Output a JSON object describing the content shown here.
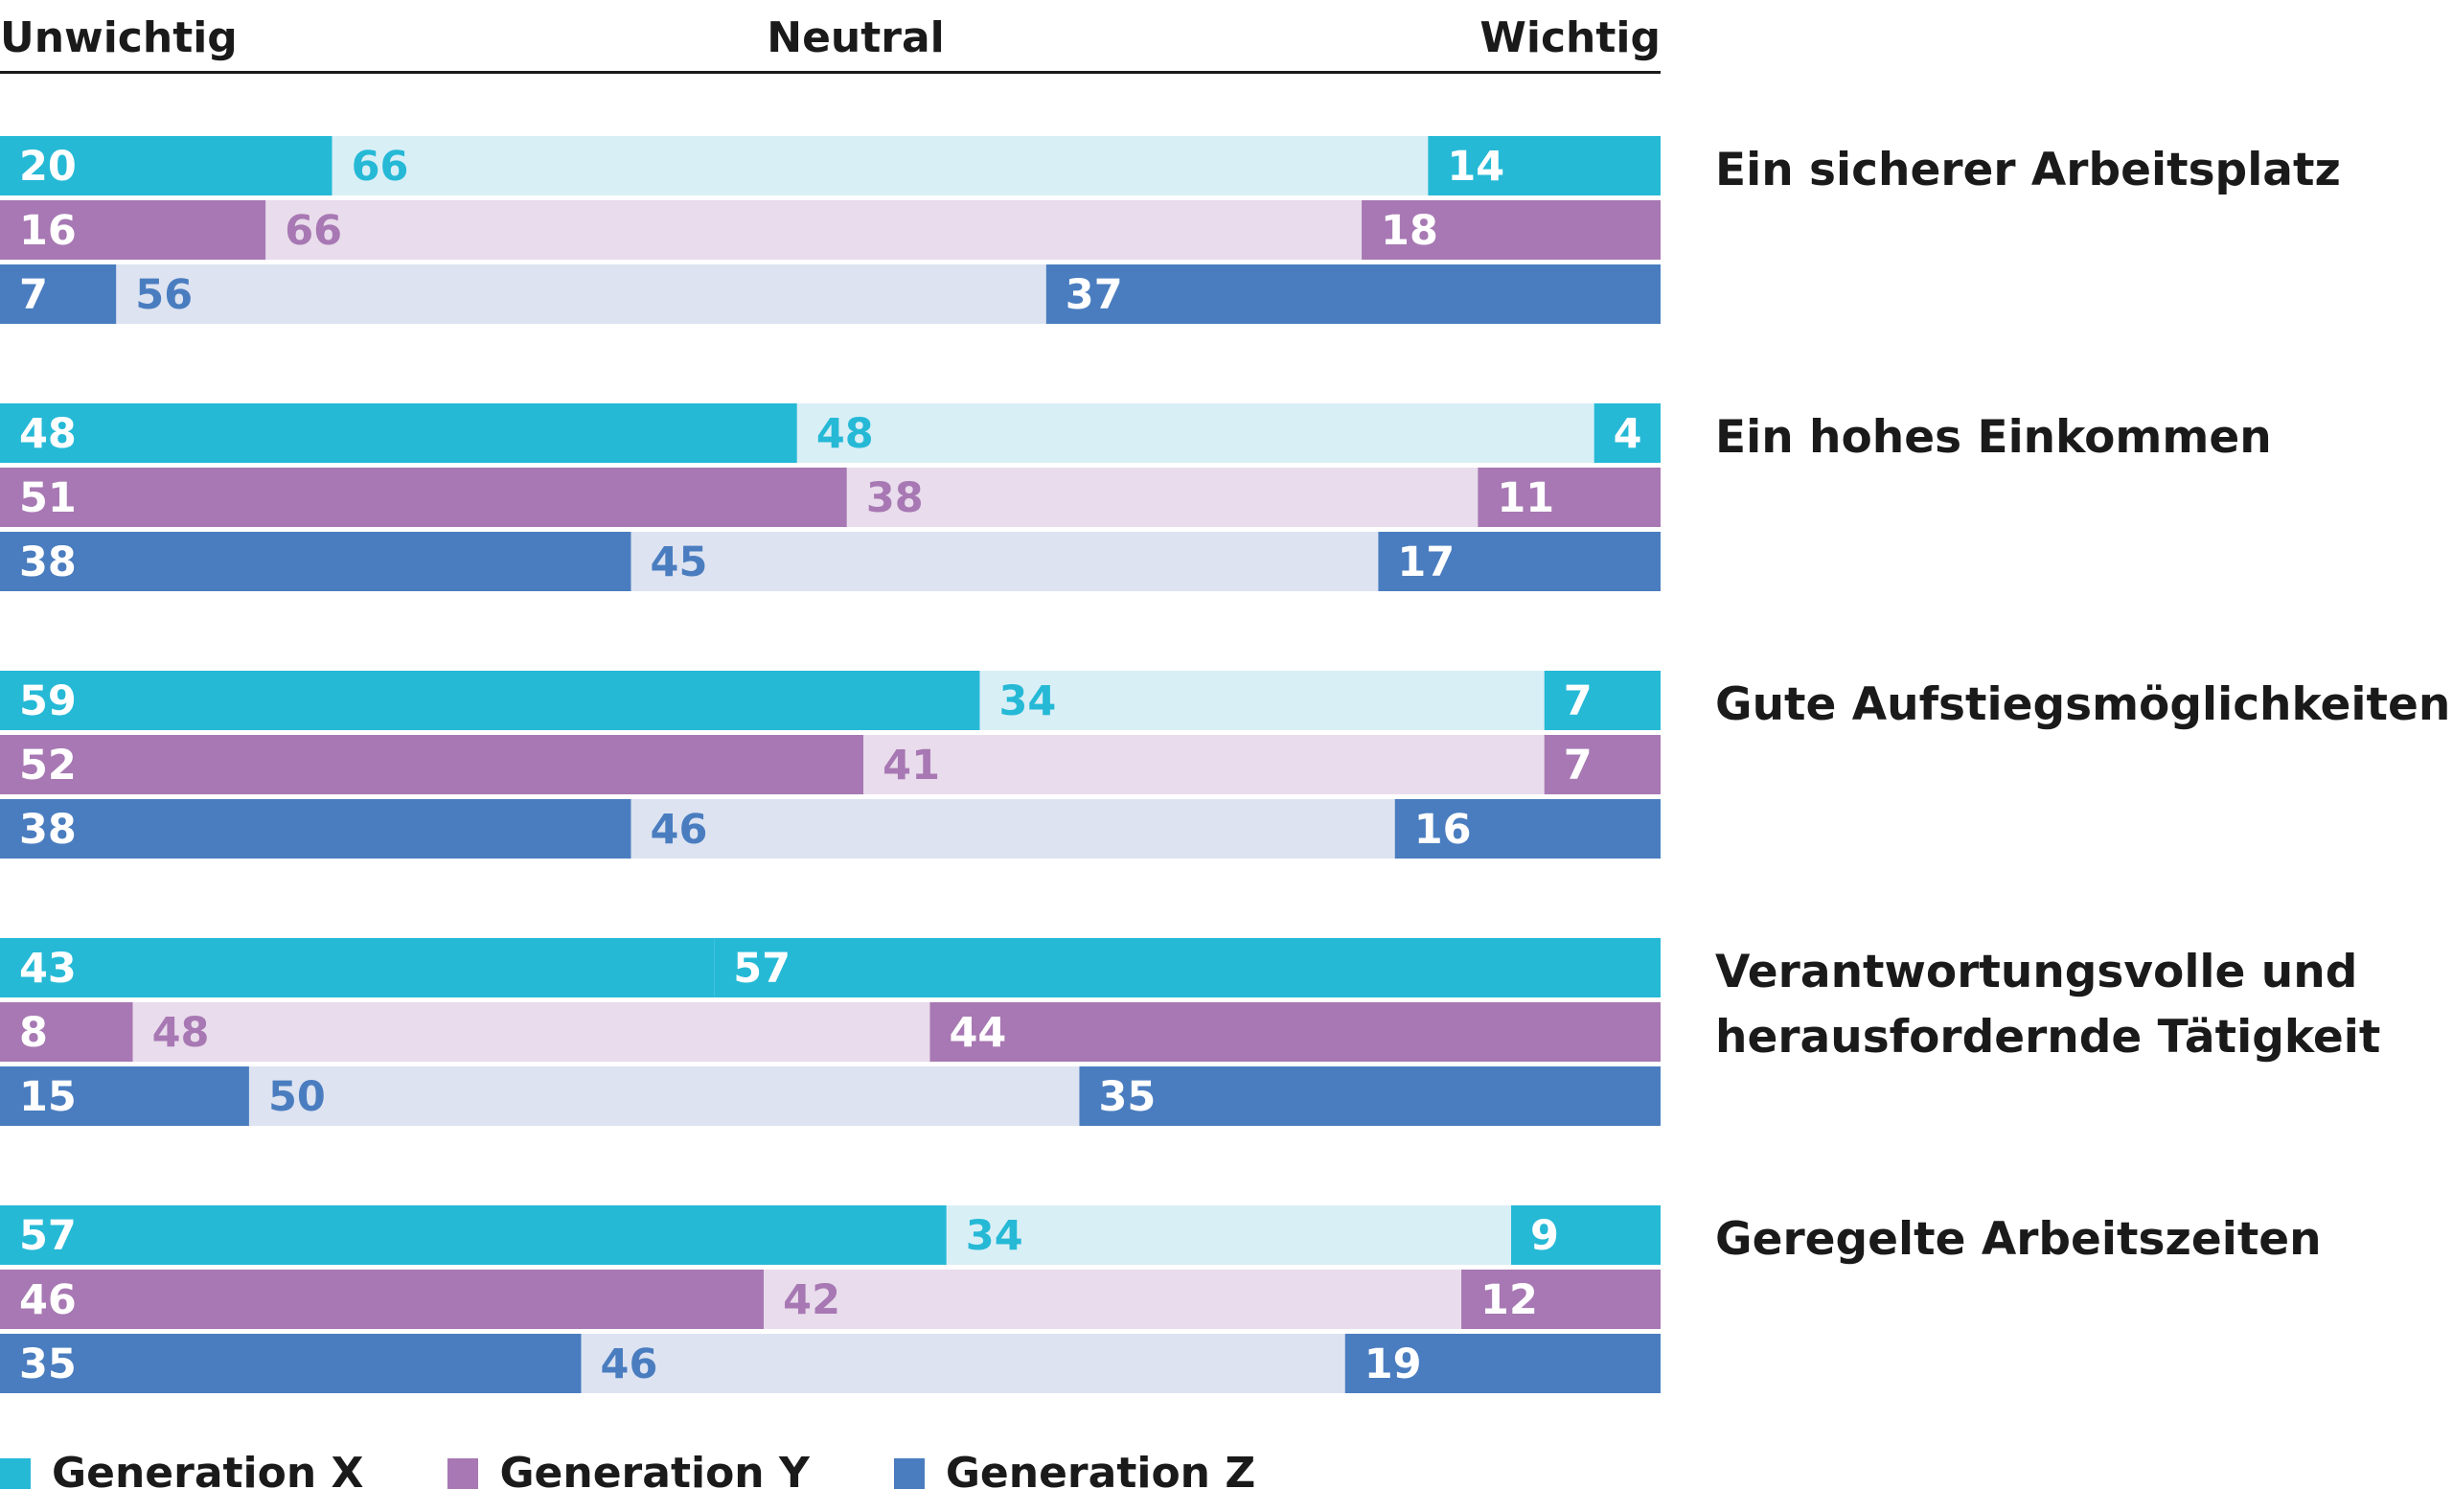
{
  "chart_data": {
    "type": "bar",
    "stacked": true,
    "orientation": "horizontal",
    "header_labels": {
      "left": "Unwichtig",
      "middle": "Neutral",
      "right": "Wichtig"
    },
    "segments": [
      "Unwichtig",
      "Neutral",
      "Wichtig"
    ],
    "series": [
      {
        "name": "Generation X",
        "color": "#25b9d6",
        "light_color": "#d9eff6"
      },
      {
        "name": "Generation Y",
        "color": "#a778b3",
        "light_color": "#e9dcec"
      },
      {
        "name": "Generation Z",
        "color": "#4a7dbf",
        "light_color": "#dde3f1"
      }
    ],
    "groups": [
      {
        "label": [
          "Ein sicherer Arbeitsplatz"
        ],
        "rows": [
          [
            20,
            66,
            14
          ],
          [
            16,
            66,
            18
          ],
          [
            7,
            56,
            37
          ]
        ],
        "emphasis": [
          "unwichtig",
          "unwichtig",
          "unwichtig"
        ]
      },
      {
        "label": [
          "Ein hohes Einkommen"
        ],
        "rows": [
          [
            48,
            48,
            4
          ],
          [
            51,
            38,
            11
          ],
          [
            38,
            45,
            17
          ]
        ],
        "emphasis": [
          "unwichtig",
          "unwichtig",
          "unwichtig"
        ]
      },
      {
        "label": [
          "Gute Aufstiegsmöglichkeiten"
        ],
        "rows": [
          [
            59,
            34,
            7
          ],
          [
            52,
            41,
            7
          ],
          [
            38,
            46,
            16
          ]
        ],
        "emphasis": [
          "unwichtig",
          "unwichtig",
          "unwichtig"
        ]
      },
      {
        "label": [
          "Verantwortungsvolle und",
          "herausfordernde Tätigkeit"
        ],
        "rows": [
          [
            0,
            43,
            57
          ],
          [
            8,
            48,
            44
          ],
          [
            15,
            50,
            35
          ]
        ],
        "emphasis": [
          "neutral",
          "unwichtig",
          "unwichtig"
        ]
      },
      {
        "label": [
          "Geregelte Arbeitszeiten"
        ],
        "rows": [
          [
            57,
            34,
            9
          ],
          [
            46,
            42,
            12
          ],
          [
            35,
            46,
            19
          ]
        ],
        "emphasis": [
          "unwichtig",
          "unwichtig",
          "unwichtig"
        ]
      }
    ],
    "xlim": [
      0,
      100
    ]
  },
  "legend": [
    {
      "label": "Generation X",
      "color": "#25b9d6"
    },
    {
      "label": "Generation Y",
      "color": "#a778b3"
    },
    {
      "label": "Generation Z",
      "color": "#4a7dbf"
    }
  ]
}
